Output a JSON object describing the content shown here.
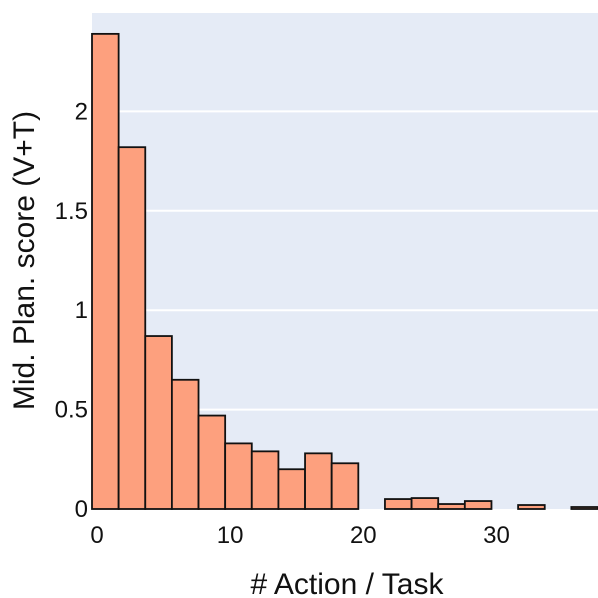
{
  "chart_data": {
    "type": "bar",
    "title": "",
    "xlabel": "# Action / Task",
    "ylabel": "Mid. Plan. score (V+T)",
    "xlim": [
      0,
      38
    ],
    "ylim": [
      0,
      2.5
    ],
    "xticks": [
      "0",
      "10",
      "20",
      "30"
    ],
    "xtick_values": [
      0,
      10,
      20,
      30
    ],
    "yticks": [
      "0",
      "0.5",
      "1",
      "1.5",
      "2"
    ],
    "ytick_values": [
      0,
      0.5,
      1,
      1.5,
      2
    ],
    "grid": true,
    "bin_width": 2,
    "bars": [
      {
        "x0": 0,
        "x1": 2,
        "value": 2.39
      },
      {
        "x0": 2,
        "x1": 4,
        "value": 1.82
      },
      {
        "x0": 4,
        "x1": 6,
        "value": 0.87
      },
      {
        "x0": 6,
        "x1": 8,
        "value": 0.65
      },
      {
        "x0": 8,
        "x1": 10,
        "value": 0.47
      },
      {
        "x0": 10,
        "x1": 12,
        "value": 0.33
      },
      {
        "x0": 12,
        "x1": 14,
        "value": 0.29
      },
      {
        "x0": 14,
        "x1": 16,
        "value": 0.2
      },
      {
        "x0": 16,
        "x1": 18,
        "value": 0.28
      },
      {
        "x0": 18,
        "x1": 20,
        "value": 0.23
      },
      {
        "x0": 22,
        "x1": 24,
        "value": 0.05
      },
      {
        "x0": 24,
        "x1": 26,
        "value": 0.055
      },
      {
        "x0": 26,
        "x1": 28,
        "value": 0.025
      },
      {
        "x0": 28,
        "x1": 30,
        "value": 0.04
      },
      {
        "x0": 32,
        "x1": 34,
        "value": 0.02
      },
      {
        "x0": 36,
        "x1": 38,
        "value": 0.01
      }
    ],
    "colors": {
      "bar_fill": "#fda07e",
      "bar_stroke": "#111111",
      "plot_background": "#e5ebf6",
      "grid": "#ffffff"
    }
  }
}
